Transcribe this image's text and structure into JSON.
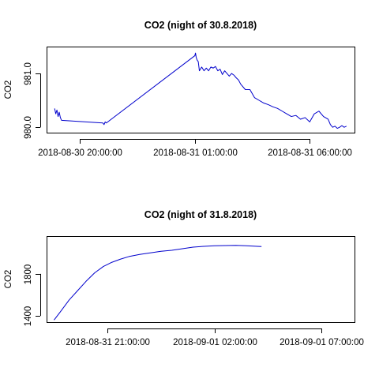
{
  "chart_data": [
    {
      "type": "line",
      "title": "CO2 (night of 30.8.2018)",
      "xlabel": "",
      "ylabel": "CO2",
      "x_ticks": [
        {
          "label": "2018-08-30 20:00:00",
          "value": 20.0
        },
        {
          "label": "2018-08-31 01:00:00",
          "value": 25.0
        },
        {
          "label": "2018-08-31 06:00:00",
          "value": 30.0
        }
      ],
      "y_ticks": [
        {
          "label": "980.0",
          "value": 980.0
        },
        {
          "label": "981.0",
          "value": 981.0
        }
      ],
      "xlim": [
        18.55,
        31.95
      ],
      "ylim": [
        979.9,
        981.5
      ],
      "grid": false,
      "color": "#0000cc",
      "series": [
        {
          "x": [
            18.9,
            18.95,
            19.0,
            19.05,
            19.1,
            19.15,
            19.2,
            21.0,
            21.05,
            21.1,
            21.15,
            25.0,
            25.03,
            25.06,
            25.1,
            25.15,
            25.2,
            25.3,
            25.4,
            25.5,
            25.6,
            25.7,
            25.8,
            25.9,
            26.0,
            26.1,
            26.2,
            26.3,
            26.4,
            26.5,
            26.6,
            26.7,
            26.8,
            26.9,
            27.0,
            27.2,
            27.4,
            27.6,
            27.8,
            28.0,
            28.2,
            28.4,
            28.6,
            28.8,
            29.0,
            29.2,
            29.4,
            29.6,
            29.8,
            30.0,
            30.2,
            30.4,
            30.6,
            30.8,
            30.9,
            31.0,
            31.1,
            31.2,
            31.3,
            31.4,
            31.5,
            31.6
          ],
          "y": [
            980.35,
            980.25,
            980.32,
            980.2,
            980.28,
            980.18,
            980.13,
            980.08,
            980.05,
            980.1,
            980.08,
            981.33,
            981.38,
            981.3,
            981.25,
            981.22,
            981.05,
            981.12,
            981.05,
            981.1,
            981.05,
            981.12,
            981.1,
            981.13,
            981.05,
            981.08,
            980.98,
            981.05,
            981.0,
            980.95,
            981.0,
            980.97,
            980.92,
            980.88,
            980.8,
            980.7,
            980.7,
            980.55,
            980.5,
            980.45,
            980.42,
            980.38,
            980.35,
            980.3,
            980.25,
            980.2,
            980.22,
            980.15,
            980.18,
            980.1,
            980.25,
            980.3,
            980.2,
            980.15,
            980.05,
            980.0,
            980.02,
            979.98,
            980.0,
            980.03,
            980.0,
            980.02
          ]
        }
      ]
    },
    {
      "type": "line",
      "title": "CO2 (night of 31.8.2018)",
      "xlabel": "",
      "ylabel": "CO2",
      "x_ticks": [
        {
          "label": "2018-08-31 21:00:00",
          "value": 21.0
        },
        {
          "label": "2018-09-01 02:00:00",
          "value": 26.0
        },
        {
          "label": "2018-09-01 07:00:00",
          "value": 31.0
        }
      ],
      "y_ticks": [
        {
          "label": "1400",
          "value": 1400
        },
        {
          "label": "1800",
          "value": 1800
        }
      ],
      "xlim": [
        18.15,
        32.55
      ],
      "ylim": [
        1340,
        2160
      ],
      "grid": false,
      "color": "#0000cc",
      "series": [
        {
          "x": [
            18.5,
            18.8,
            19.2,
            19.6,
            20.0,
            20.4,
            20.8,
            21.2,
            21.6,
            22.0,
            22.5,
            23.0,
            23.5,
            24.0,
            24.5,
            25.0,
            25.5,
            26.0,
            26.5,
            27.0,
            27.5,
            28.0,
            28.2
          ],
          "y": [
            1360,
            1440,
            1550,
            1640,
            1730,
            1810,
            1870,
            1910,
            1940,
            1965,
            1985,
            2000,
            2015,
            2025,
            2040,
            2055,
            2062,
            2068,
            2070,
            2072,
            2068,
            2062,
            2060
          ]
        }
      ]
    }
  ]
}
